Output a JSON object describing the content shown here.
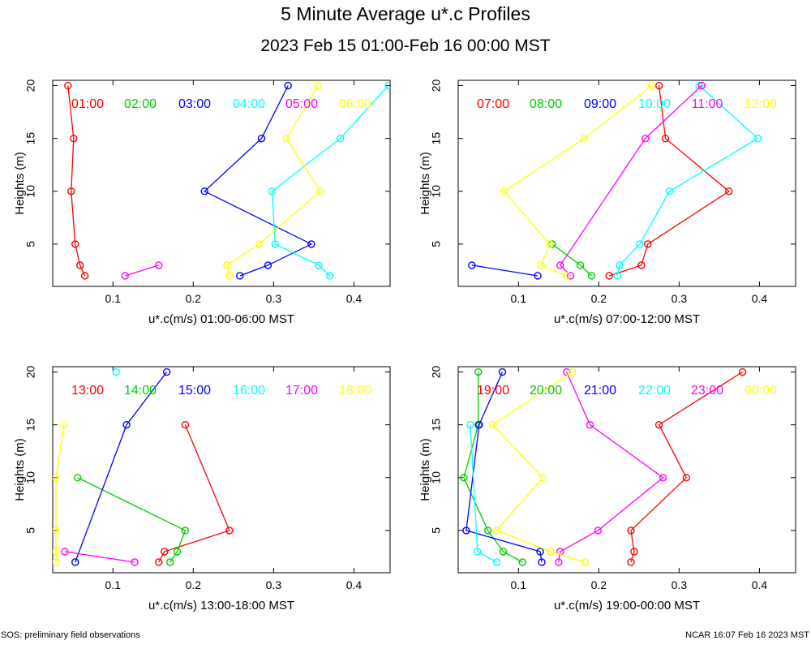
{
  "title": "5 Minute Average u*.c Profiles",
  "subtitle": "2023 Feb 15 01:00-Feb 16 00:00 MST",
  "footer": {
    "left": "SOS: preliminary field observations",
    "right": "NCAR 16:07 Feb 16 2023 MST"
  },
  "colors": [
    "#ff0000",
    "#00cc00",
    "#0000ff",
    "#00ffff",
    "#ff00ff",
    "#ffff00"
  ],
  "chart_data": [
    {
      "type": "line",
      "xlabel": "u*.c(m/s) 01:00-06:00 MST",
      "ylabel": "Heights (m)",
      "xlim": [
        0.025,
        0.445
      ],
      "ylim": [
        1,
        20.5
      ],
      "xticks": [
        "0.1",
        "0.2",
        "0.3",
        "0.4"
      ],
      "yticks": [
        "5",
        "10",
        "15",
        "20"
      ],
      "series": [
        {
          "name": "01:00",
          "points": [
            [
              0.065,
              2
            ],
            [
              0.059,
              3
            ],
            [
              0.053,
              5
            ],
            [
              0.048,
              10
            ],
            [
              0.051,
              15
            ],
            [
              0.044,
              20
            ]
          ]
        },
        {
          "name": "02:00",
          "points": []
        },
        {
          "name": "03:00",
          "points": [
            [
              0.258,
              2
            ],
            [
              0.293,
              3
            ],
            [
              0.347,
              5
            ],
            [
              0.214,
              10
            ],
            [
              0.285,
              15
            ],
            [
              0.318,
              20
            ]
          ]
        },
        {
          "name": "04:00",
          "points": [
            [
              0.37,
              2
            ],
            [
              0.356,
              3
            ],
            [
              0.302,
              5
            ],
            [
              0.298,
              10
            ],
            [
              0.383,
              15
            ],
            [
              0.443,
              20
            ]
          ]
        },
        {
          "name": "05:00",
          "points": [
            [
              0.115,
              2
            ],
            [
              0.157,
              3
            ]
          ]
        },
        {
          "name": "06:00",
          "points": [
            [
              0.245,
              2
            ],
            [
              0.242,
              3
            ],
            [
              0.282,
              5
            ],
            [
              0.358,
              10
            ],
            [
              0.316,
              15
            ],
            [
              0.355,
              20
            ]
          ]
        }
      ]
    },
    {
      "type": "line",
      "xlabel": "u*.c(m/s) 07:00-12:00 MST",
      "ylabel": "Heights (m)",
      "xlim": [
        0.025,
        0.445
      ],
      "ylim": [
        1,
        20.5
      ],
      "xticks": [
        "0.1",
        "0.2",
        "0.3",
        "0.4"
      ],
      "yticks": [
        "5",
        "10",
        "15",
        "20"
      ],
      "series": [
        {
          "name": "07:00",
          "points": [
            [
              0.213,
              2
            ],
            [
              0.253,
              3
            ],
            [
              0.261,
              5
            ],
            [
              0.362,
              10
            ],
            [
              0.283,
              15
            ],
            [
              0.275,
              20
            ]
          ]
        },
        {
          "name": "08:00",
          "points": [
            [
              0.191,
              2
            ],
            [
              0.177,
              3
            ],
            [
              0.142,
              5
            ]
          ]
        },
        {
          "name": "09:00",
          "points": [
            [
              0.124,
              2
            ],
            [
              0.042,
              3
            ]
          ]
        },
        {
          "name": "10:00",
          "points": [
            [
              0.223,
              2
            ],
            [
              0.226,
              3
            ],
            [
              0.251,
              5
            ],
            [
              0.288,
              10
            ],
            [
              0.398,
              15
            ],
            [
              0.325,
              20
            ]
          ]
        },
        {
          "name": "11:00",
          "points": [
            [
              0.165,
              2
            ],
            [
              0.152,
              3
            ],
            [
              0.258,
              15
            ],
            [
              0.328,
              20
            ]
          ]
        },
        {
          "name": "12:00",
          "points": [
            [
              0.16,
              2
            ],
            [
              0.128,
              3
            ],
            [
              0.139,
              5
            ],
            [
              0.082,
              10
            ],
            [
              0.182,
              15
            ],
            [
              0.266,
              20
            ]
          ]
        }
      ]
    },
    {
      "type": "line",
      "xlabel": "u*.c(m/s) 13:00-18:00 MST",
      "ylabel": "Heights (m)",
      "xlim": [
        0.025,
        0.445
      ],
      "ylim": [
        1,
        20.5
      ],
      "xticks": [
        "0.1",
        "0.2",
        "0.3",
        "0.4"
      ],
      "yticks": [
        "5",
        "10",
        "15",
        "20"
      ],
      "series": [
        {
          "name": "13:00",
          "points": [
            [
              0.157,
              2
            ],
            [
              0.164,
              3
            ],
            [
              0.245,
              5
            ],
            [
              0.19,
              15
            ]
          ]
        },
        {
          "name": "14:00",
          "points": [
            [
              0.171,
              2
            ],
            [
              0.18,
              3
            ],
            [
              0.19,
              5
            ],
            [
              0.056,
              10
            ]
          ]
        },
        {
          "name": "15:00",
          "points": [
            [
              0.053,
              2
            ],
            [
              0.117,
              15
            ],
            [
              0.167,
              20
            ]
          ]
        },
        {
          "name": "16:00",
          "points": [
            [
              0.104,
              20
            ]
          ]
        },
        {
          "name": "17:00",
          "points": [
            [
              0.127,
              2
            ],
            [
              0.04,
              3
            ]
          ]
        },
        {
          "name": "18:00",
          "points": [
            [
              0.029,
              2
            ],
            [
              0.029,
              3
            ],
            [
              0.029,
              5
            ],
            [
              0.029,
              10
            ],
            [
              0.039,
              15
            ]
          ]
        }
      ]
    },
    {
      "type": "line",
      "xlabel": "u*.c(m/s) 19:00-00:00 MST",
      "ylabel": "Heights (m)",
      "xlim": [
        0.025,
        0.445
      ],
      "ylim": [
        1,
        20.5
      ],
      "xticks": [
        "0.1",
        "0.2",
        "0.3",
        "0.4"
      ],
      "yticks": [
        "5",
        "10",
        "15",
        "20"
      ],
      "series": [
        {
          "name": "19:00",
          "points": [
            [
              0.24,
              2
            ],
            [
              0.244,
              3
            ],
            [
              0.24,
              5
            ],
            [
              0.309,
              10
            ],
            [
              0.275,
              15
            ],
            [
              0.379,
              20
            ]
          ]
        },
        {
          "name": "20:00",
          "points": [
            [
              0.105,
              2
            ],
            [
              0.081,
              3
            ],
            [
              0.062,
              5
            ],
            [
              0.032,
              10
            ],
            [
              0.05,
              15
            ],
            [
              0.05,
              20
            ]
          ]
        },
        {
          "name": "21:00",
          "points": [
            [
              0.129,
              2
            ],
            [
              0.127,
              3
            ],
            [
              0.035,
              5
            ],
            [
              0.051,
              15
            ],
            [
              0.08,
              20
            ]
          ]
        },
        {
          "name": "22:00",
          "points": [
            [
              0.073,
              2
            ],
            [
              0.049,
              3
            ],
            [
              0.04,
              15
            ]
          ]
        },
        {
          "name": "23:00",
          "points": [
            [
              0.15,
              2
            ],
            [
              0.152,
              3
            ],
            [
              0.199,
              5
            ],
            [
              0.28,
              10
            ],
            [
              0.189,
              15
            ],
            [
              0.16,
              20
            ]
          ]
        },
        {
          "name": "00:00",
          "points": [
            [
              0.183,
              2
            ],
            [
              0.14,
              3
            ],
            [
              0.073,
              5
            ],
            [
              0.13,
              10
            ],
            [
              0.068,
              15
            ],
            [
              0.167,
              20
            ]
          ]
        }
      ]
    }
  ]
}
